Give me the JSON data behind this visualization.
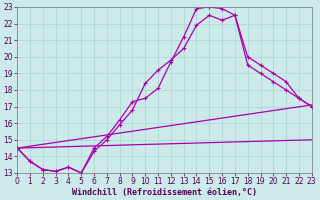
{
  "xlabel": "Windchill (Refroidissement éolien,°C)",
  "bg_color": "#cceaea",
  "line_color": "#aa00aa",
  "xmin": 0,
  "xmax": 23,
  "ymin": 13,
  "ymax": 23,
  "line1_x": [
    0,
    1,
    2,
    3,
    4,
    5,
    6,
    7,
    8,
    9,
    10,
    11,
    12,
    13,
    14,
    15,
    16,
    17,
    18,
    19,
    20,
    21,
    22,
    23
  ],
  "line1_y": [
    14.5,
    13.7,
    13.2,
    13.1,
    13.35,
    13.0,
    14.5,
    15.2,
    16.2,
    17.3,
    17.5,
    18.1,
    19.7,
    21.2,
    22.9,
    23.0,
    22.9,
    22.5,
    20.0,
    19.5,
    19.0,
    18.5,
    17.5,
    17.0
  ],
  "line2_x": [
    0,
    1,
    2,
    3,
    4,
    5,
    6,
    7,
    8,
    9,
    10,
    11,
    12,
    13,
    14,
    15,
    16,
    17,
    18,
    19,
    20,
    21,
    22,
    23
  ],
  "line2_y": [
    14.5,
    13.7,
    13.2,
    13.1,
    13.35,
    13.0,
    14.3,
    15.0,
    15.9,
    16.8,
    18.4,
    19.2,
    19.8,
    20.5,
    21.9,
    22.5,
    22.2,
    22.5,
    19.5,
    19.0,
    18.5,
    18.0,
    17.5,
    17.0
  ],
  "line3_x": [
    0,
    23
  ],
  "line3_y": [
    14.5,
    17.1
  ],
  "line4_x": [
    0,
    23
  ],
  "line4_y": [
    14.5,
    15.0
  ],
  "grid_color": "#aad4d4",
  "tick_fontsize": 5.5
}
